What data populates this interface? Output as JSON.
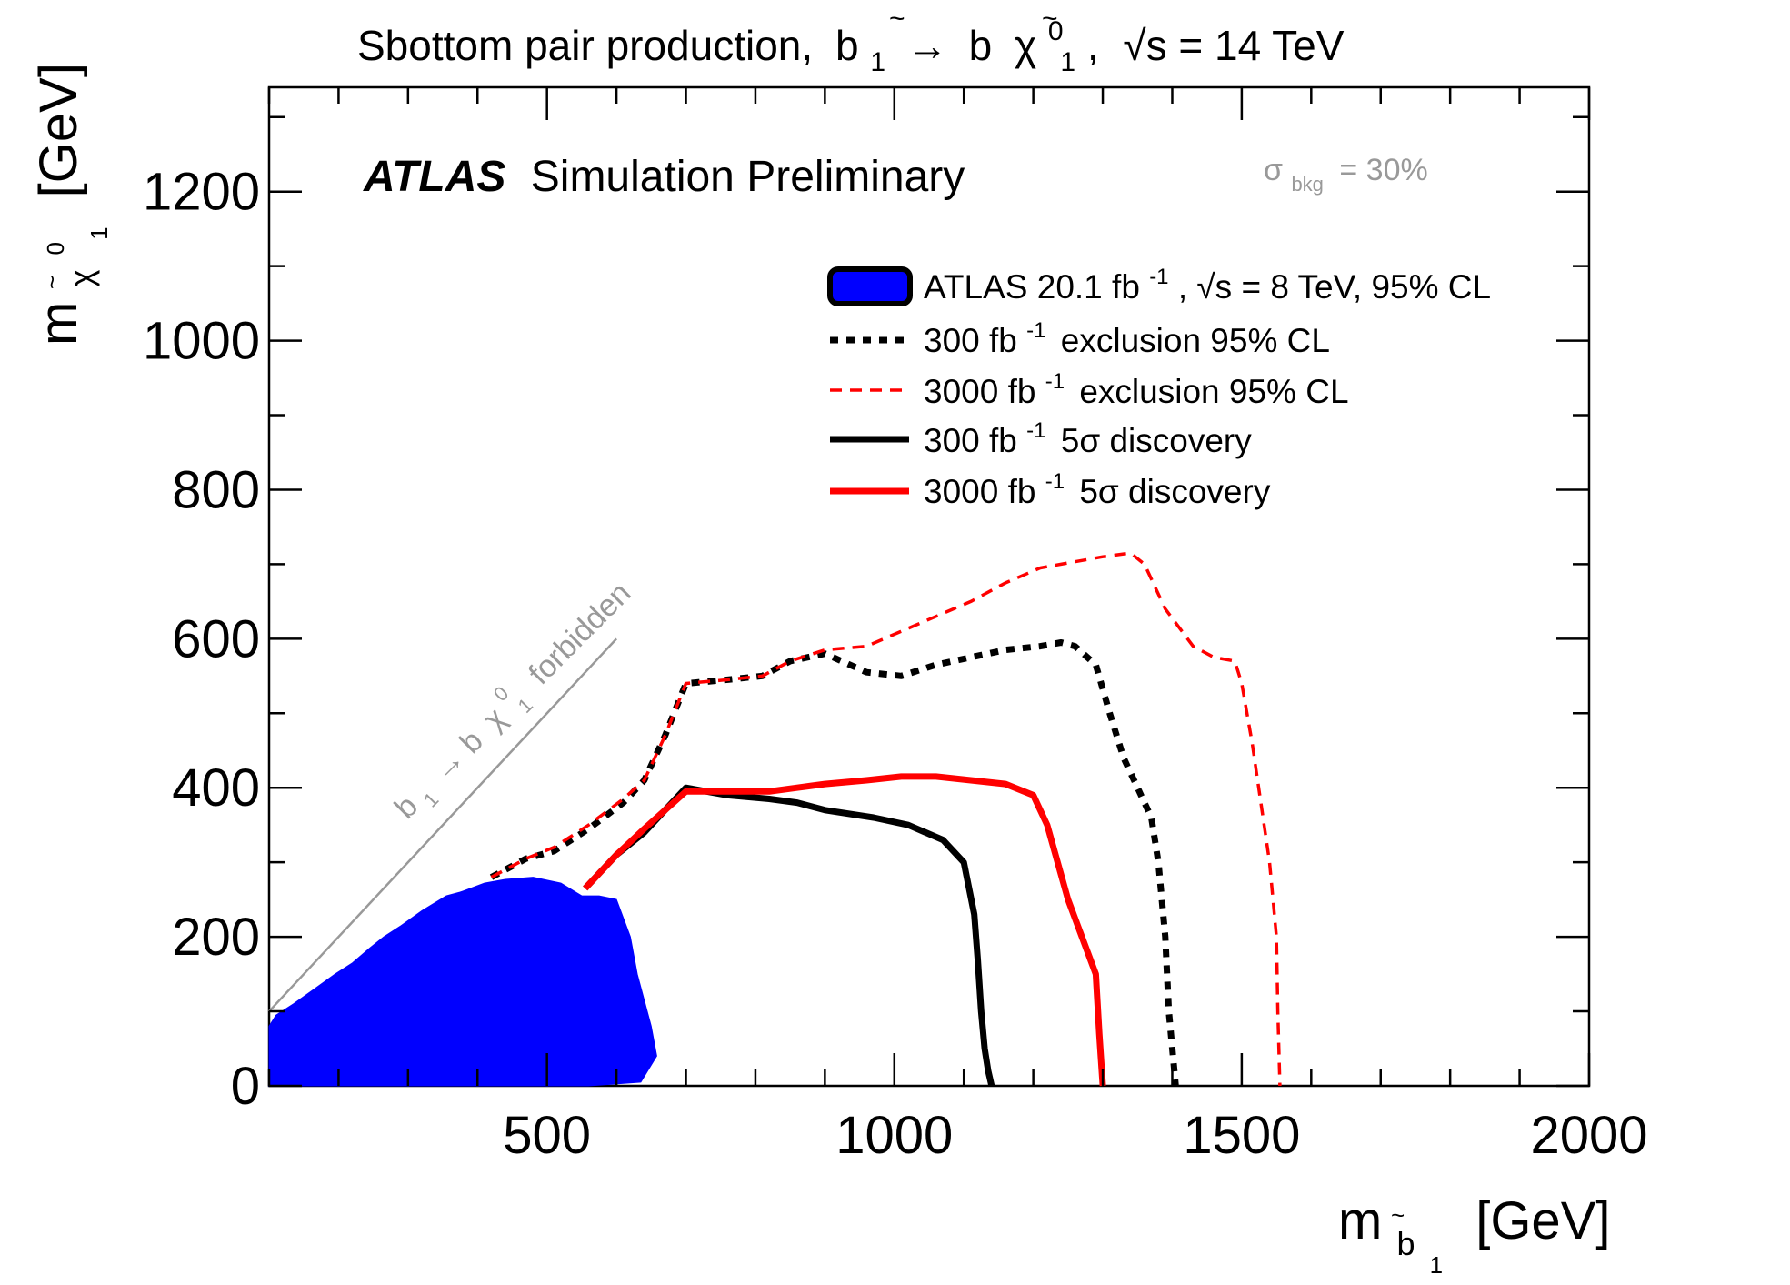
{
  "chart_data": {
    "type": "line",
    "title": {
      "prefix": "Sbottom pair production,",
      "process_initial": "b",
      "arrow": "→",
      "b": "b",
      "chi": "χ",
      "chi_sub": "1",
      "chi_sup": "0",
      "b_sub": "1",
      "sqrt_s": "√s = 14 TeV",
      "separator": ","
    },
    "xlabel": {
      "m": "m",
      "sub": "b",
      "subsub": "1",
      "unit": "[GeV]"
    },
    "ylabel": {
      "m": "m",
      "sub": "χ",
      "sub_sup": "0",
      "subsub": "1",
      "unit": "[GeV]"
    },
    "xlim": [
      100,
      2000
    ],
    "ylim": [
      0,
      1340
    ],
    "x_ticks": [
      {
        "value": 500,
        "label": "500"
      },
      {
        "value": 1000,
        "label": "1000"
      },
      {
        "value": 1500,
        "label": "1500"
      },
      {
        "value": 2000,
        "label": "2000"
      }
    ],
    "y_ticks": [
      {
        "value": 0,
        "label": "0"
      },
      {
        "value": 200,
        "label": "200"
      },
      {
        "value": 400,
        "label": "400"
      },
      {
        "value": 600,
        "label": "600"
      },
      {
        "value": 800,
        "label": "800"
      },
      {
        "value": 1000,
        "label": "1000"
      },
      {
        "value": 1200,
        "label": "1200"
      }
    ],
    "x_major_step": 500,
    "x_minor_step": 100,
    "y_major_step": 200,
    "y_minor_step": 100,
    "grid": false,
    "experiment_label": {
      "bold": "ATLAS",
      "rest": "Simulation Preliminary"
    },
    "background_label": {
      "sigma": "σ",
      "sub": "bkg",
      "rest": "= 30%"
    },
    "forbidden_label": {
      "b": "b",
      "b_sub": "1",
      "arrow": "→ b",
      "chi": "χ",
      "chi_sup": "0",
      "chi_sub": "1",
      "rest": "forbidden"
    },
    "forbidden_line": [
      [
        100,
        100
      ],
      [
        600,
        600
      ]
    ],
    "legend_position": "top-right",
    "legend": [
      {
        "series": "atlas_8tev",
        "text": "ATLAS 20.1 fb",
        "sup": "-1",
        "rest": ", √s = 8 TeV, 95% CL"
      },
      {
        "series": "exclusion_300",
        "text": "300 fb",
        "sup": "-1",
        "rest": "exclusion 95% CL"
      },
      {
        "series": "exclusion_3000",
        "text": "3000 fb",
        "sup": "-1",
        "rest": "exclusion 95% CL"
      },
      {
        "series": "discovery_300",
        "text": "300 fb",
        "sup": "-1",
        "rest": "5σ discovery"
      },
      {
        "series": "discovery_3000",
        "text": "3000 fb",
        "sup": "-1",
        "rest": "5σ discovery"
      }
    ],
    "series": [
      {
        "id": "atlas_8tev",
        "type": "area",
        "color": "#0000ff",
        "x": [
          100,
          110,
          135,
          165,
          195,
          220,
          245,
          265,
          290,
          320,
          355,
          375,
          390,
          410,
          440,
          480,
          520,
          550,
          575,
          600,
          620,
          630,
          650,
          658,
          635,
          560,
          100
        ],
        "y": [
          80,
          95,
          110,
          130,
          150,
          165,
          185,
          200,
          215,
          235,
          255,
          260,
          265,
          272,
          277,
          280,
          272,
          255,
          255,
          250,
          200,
          150,
          80,
          40,
          5,
          0,
          0
        ]
      },
      {
        "id": "exclusion_300",
        "type": "line",
        "color": "#000000",
        "style": "dotted",
        "x": [
          420,
          470,
          510,
          560,
          610,
          640,
          670,
          700,
          760,
          810,
          850,
          900,
          960,
          1010,
          1060,
          1110,
          1160,
          1210,
          1240,
          1260,
          1290,
          1310,
          1330,
          1350,
          1370,
          1380,
          1390,
          1395,
          1405
        ],
        "y": [
          280,
          305,
          315,
          345,
          380,
          410,
          470,
          540,
          545,
          550,
          570,
          580,
          555,
          550,
          565,
          575,
          585,
          590,
          595,
          590,
          565,
          500,
          440,
          400,
          360,
          300,
          200,
          100,
          0
        ]
      },
      {
        "id": "exclusion_3000",
        "type": "line",
        "color": "#ff0000",
        "style": "dashed",
        "x": [
          420,
          470,
          510,
          560,
          610,
          640,
          670,
          700,
          760,
          810,
          850,
          900,
          960,
          1010,
          1060,
          1110,
          1160,
          1210,
          1240,
          1300,
          1340,
          1360,
          1390,
          1430,
          1460,
          1490,
          1500,
          1515,
          1540,
          1550,
          1552,
          1555
        ],
        "y": [
          280,
          305,
          320,
          350,
          385,
          410,
          470,
          540,
          545,
          550,
          570,
          585,
          590,
          610,
          630,
          650,
          675,
          695,
          700,
          710,
          715,
          700,
          640,
          590,
          575,
          570,
          540,
          460,
          300,
          200,
          100,
          0
        ]
      },
      {
        "id": "discovery_300",
        "type": "line",
        "color": "#000000",
        "style": "solid",
        "x": [
          555,
          600,
          640,
          670,
          700,
          760,
          820,
          860,
          900,
          970,
          1020,
          1070,
          1100,
          1115,
          1120,
          1125,
          1130,
          1135,
          1140
        ],
        "y": [
          265,
          310,
          340,
          370,
          400,
          390,
          385,
          380,
          370,
          360,
          350,
          330,
          300,
          230,
          170,
          100,
          50,
          20,
          0
        ]
      },
      {
        "id": "discovery_3000",
        "type": "line",
        "color": "#ff0000",
        "style": "solid",
        "x": [
          555,
          600,
          640,
          670,
          700,
          760,
          820,
          860,
          900,
          960,
          1010,
          1060,
          1110,
          1160,
          1200,
          1220,
          1250,
          1270,
          1290,
          1295,
          1300
        ],
        "y": [
          265,
          310,
          345,
          370,
          395,
          395,
          395,
          400,
          405,
          410,
          415,
          415,
          410,
          405,
          390,
          350,
          250,
          200,
          150,
          70,
          0
        ]
      }
    ]
  }
}
